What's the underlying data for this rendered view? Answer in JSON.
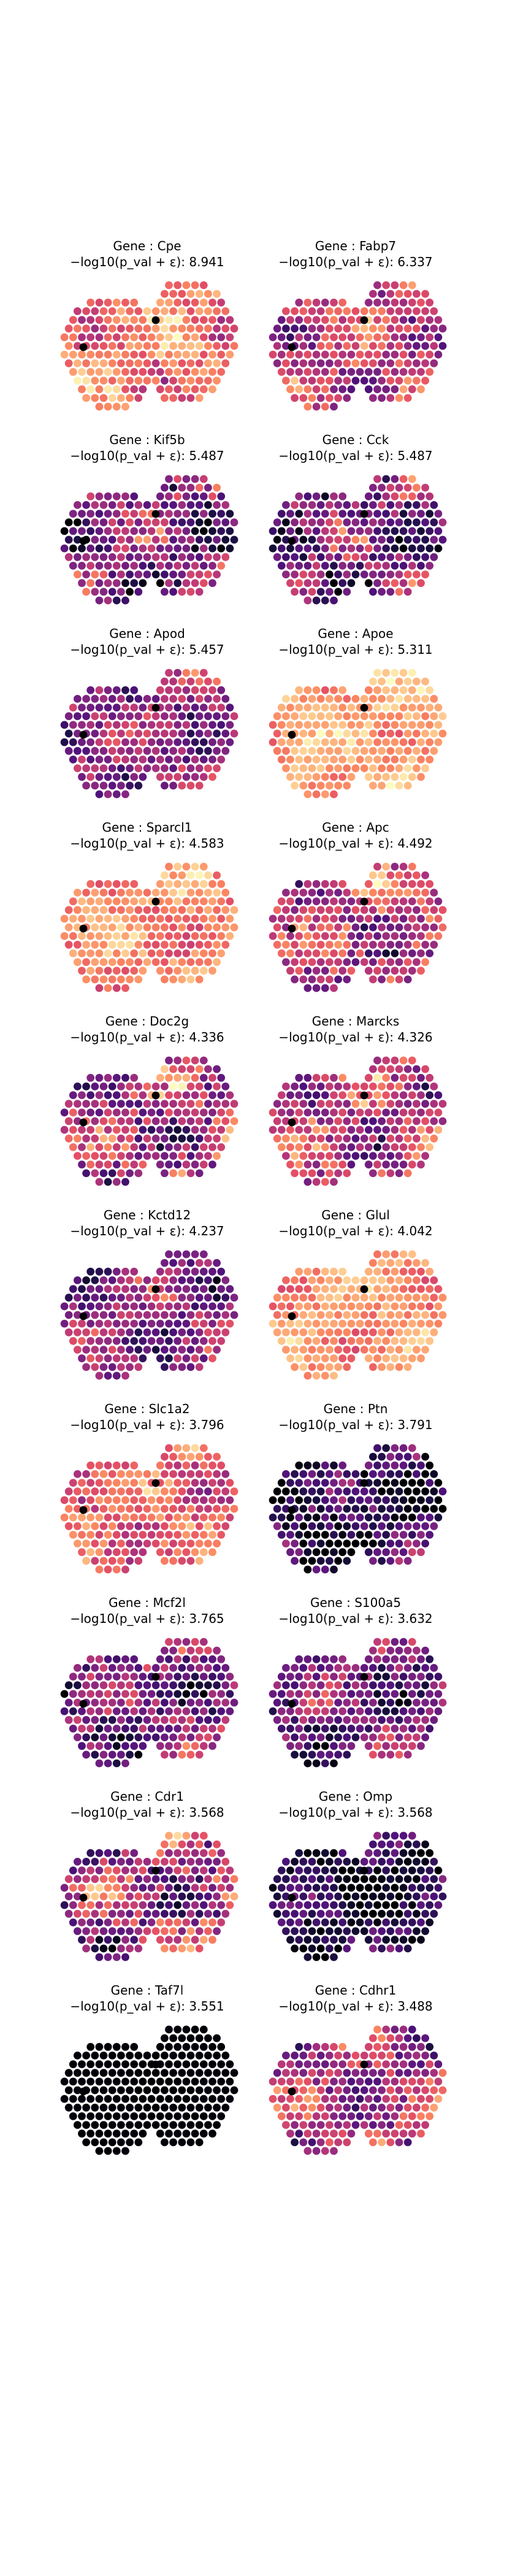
{
  "figure": {
    "background": "#ffffff",
    "colormap": "magma"
  },
  "chart_data": [
    {
      "type": "scatter",
      "gene_label": "Gene : Cpe",
      "stat_label": "−log10(p_val + ε): 8.941",
      "score": 8.941,
      "palette_bias": 0.72,
      "variation": 0.18
    },
    {
      "type": "scatter",
      "gene_label": "Gene : Fabp7",
      "stat_label": "−log10(p_val + ε): 6.337",
      "score": 6.337,
      "palette_bias": 0.55,
      "variation": 0.22
    },
    {
      "type": "scatter",
      "gene_label": "Gene : Kif5b",
      "stat_label": "−log10(p_val + ε): 5.487",
      "score": 5.487,
      "palette_bias": 0.38,
      "variation": 0.28
    },
    {
      "type": "scatter",
      "gene_label": "Gene : Cck",
      "stat_label": "−log10(p_val + ε): 5.487",
      "score": 5.487,
      "palette_bias": 0.36,
      "variation": 0.3
    },
    {
      "type": "scatter",
      "gene_label": "Gene : Apod",
      "stat_label": "−log10(p_val + ε): 5.457",
      "score": 5.457,
      "palette_bias": 0.42,
      "variation": 0.22
    },
    {
      "type": "scatter",
      "gene_label": "Gene : Apoe",
      "stat_label": "−log10(p_val + ε): 5.311",
      "score": 5.311,
      "palette_bias": 0.82,
      "variation": 0.12
    },
    {
      "type": "scatter",
      "gene_label": "Gene : Sparcl1",
      "stat_label": "−log10(p_val + ε): 4.583",
      "score": 4.583,
      "palette_bias": 0.76,
      "variation": 0.14
    },
    {
      "type": "scatter",
      "gene_label": "Gene : Apc",
      "stat_label": "−log10(p_val + ε): 4.492",
      "score": 4.492,
      "palette_bias": 0.52,
      "variation": 0.26
    },
    {
      "type": "scatter",
      "gene_label": "Gene : Doc2g",
      "stat_label": "−log10(p_val + ε): 4.336",
      "score": 4.336,
      "palette_bias": 0.48,
      "variation": 0.28
    },
    {
      "type": "scatter",
      "gene_label": "Gene : Marcks",
      "stat_label": "−log10(p_val + ε): 4.326",
      "score": 4.326,
      "palette_bias": 0.52,
      "variation": 0.26
    },
    {
      "type": "scatter",
      "gene_label": "Gene : Kctd12",
      "stat_label": "−log10(p_val + ε): 4.237",
      "score": 4.237,
      "palette_bias": 0.4,
      "variation": 0.22
    },
    {
      "type": "scatter",
      "gene_label": "Gene : Glul",
      "stat_label": "−log10(p_val + ε): 4.042",
      "score": 4.042,
      "palette_bias": 0.78,
      "variation": 0.12
    },
    {
      "type": "scatter",
      "gene_label": "Gene : Slc1a2",
      "stat_label": "−log10(p_val + ε): 3.796",
      "score": 3.796,
      "palette_bias": 0.66,
      "variation": 0.18
    },
    {
      "type": "scatter",
      "gene_label": "Gene : Ptn",
      "stat_label": "−log10(p_val + ε): 3.791",
      "score": 3.791,
      "palette_bias": 0.16,
      "variation": 0.24
    },
    {
      "type": "scatter",
      "gene_label": "Gene : Mcf2l",
      "stat_label": "−log10(p_val + ε): 3.765",
      "score": 3.765,
      "palette_bias": 0.36,
      "variation": 0.26
    },
    {
      "type": "scatter",
      "gene_label": "Gene : S100a5",
      "stat_label": "−log10(p_val + ε): 3.632",
      "score": 3.632,
      "palette_bias": 0.34,
      "variation": 0.24
    },
    {
      "type": "scatter",
      "gene_label": "Gene : Cdr1",
      "stat_label": "−log10(p_val + ε): 3.568",
      "score": 3.568,
      "palette_bias": 0.46,
      "variation": 0.3
    },
    {
      "type": "scatter",
      "gene_label": "Gene : Omp",
      "stat_label": "−log10(p_val + ε): 3.568",
      "score": 3.568,
      "palette_bias": 0.14,
      "variation": 0.18
    },
    {
      "type": "scatter",
      "gene_label": "Gene : Taf7l",
      "stat_label": "−log10(p_val + ε): 3.551",
      "score": 3.551,
      "palette_bias": 0.01,
      "variation": 0.01
    },
    {
      "type": "scatter",
      "gene_label": "Gene : Cdhr1",
      "stat_label": "−log10(p_val + ε): 3.488",
      "score": 3.488,
      "palette_bias": 0.48,
      "variation": 0.24
    }
  ]
}
